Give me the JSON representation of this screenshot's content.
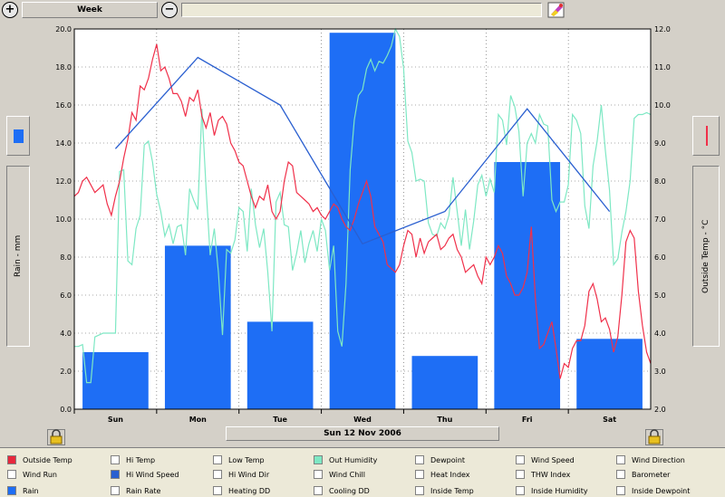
{
  "toolbar": {
    "zoom_in_label": "+",
    "zoom_out_label": "−",
    "period": "Week",
    "search_value": ""
  },
  "date_label": "Sun 12 Nov 2006",
  "colors": {
    "rain": "#1e6ef5",
    "outside_temp": "#f0304a",
    "humidity": "#7ee8c4",
    "wind": "#2a5fd0",
    "plot_bg": "#ffffff"
  },
  "chart_data": {
    "type": "bar",
    "grid": true,
    "categories": [
      "Sun",
      "Mon",
      "Tue",
      "Wed",
      "Thu",
      "Fri",
      "Sat"
    ],
    "left_axis": {
      "label": "Rain - mm",
      "range": [
        0,
        20
      ],
      "ticks": [
        "0.0",
        "2.0",
        "4.0",
        "6.0",
        "8.0",
        "10.0",
        "12.0",
        "14.0",
        "16.0",
        "18.0",
        "20.0"
      ]
    },
    "right_axis": {
      "label": "Outside Temp - °C",
      "range": [
        2,
        12
      ],
      "ticks": [
        "2.0",
        "3.0",
        "4.0",
        "5.0",
        "6.0",
        "7.0",
        "8.0",
        "9.0",
        "10.0",
        "11.0",
        "12.0"
      ]
    },
    "series": [
      {
        "name": "Rain",
        "type": "bar",
        "axis": "left",
        "values": [
          3.0,
          8.6,
          4.6,
          19.8,
          2.8,
          13.0,
          3.7
        ]
      },
      {
        "name": "Hi Wind Speed",
        "type": "line",
        "axis": "left",
        "x": [
          0.5,
          1.5,
          2.5,
          3.5,
          4.5,
          5.5,
          6.5
        ],
        "values": [
          13.7,
          18.5,
          16.0,
          8.7,
          10.4,
          15.8,
          10.4
        ]
      },
      {
        "name": "Outside Temp",
        "type": "line",
        "axis": "right",
        "x": [
          0.0,
          0.05,
          0.1,
          0.15,
          0.2,
          0.25,
          0.3,
          0.35,
          0.4,
          0.45,
          0.5,
          0.55,
          0.6,
          0.65,
          0.7,
          0.75,
          0.8,
          0.85,
          0.9,
          0.95,
          1.0,
          1.05,
          1.1,
          1.15,
          1.2,
          1.25,
          1.3,
          1.35,
          1.4,
          1.45,
          1.5,
          1.55,
          1.6,
          1.65,
          1.7,
          1.75,
          1.8,
          1.85,
          1.9,
          1.95,
          2.0,
          2.05,
          2.1,
          2.15,
          2.2,
          2.25,
          2.3,
          2.35,
          2.4,
          2.45,
          2.5,
          2.55,
          2.6,
          2.65,
          2.7,
          2.75,
          2.8,
          2.85,
          2.9,
          2.95,
          3.0,
          3.05,
          3.1,
          3.15,
          3.2,
          3.25,
          3.3,
          3.35,
          3.4,
          3.45,
          3.5,
          3.55,
          3.6,
          3.65,
          3.7,
          3.75,
          3.8,
          3.85,
          3.9,
          3.95,
          4.0,
          4.05,
          4.1,
          4.15,
          4.2,
          4.25,
          4.3,
          4.35,
          4.4,
          4.45,
          4.5,
          4.55,
          4.6,
          4.65,
          4.7,
          4.75,
          4.8,
          4.85,
          4.9,
          4.95,
          5.0,
          5.05,
          5.1,
          5.15,
          5.2,
          5.25,
          5.3,
          5.35,
          5.4,
          5.45,
          5.5,
          5.55,
          5.6,
          5.65,
          5.7,
          5.75,
          5.8,
          5.85,
          5.9,
          5.95,
          6.0,
          6.05,
          6.1,
          6.15,
          6.2,
          6.25,
          6.3,
          6.35,
          6.4,
          6.45,
          6.5,
          6.55,
          6.6,
          6.65,
          6.7,
          6.75,
          6.8,
          6.85,
          6.9,
          6.95,
          7.0
        ],
        "values": [
          7.6,
          7.7,
          8.0,
          8.1,
          7.9,
          7.7,
          7.8,
          7.9,
          7.4,
          7.1,
          7.6,
          8.0,
          8.6,
          9.1,
          9.8,
          9.6,
          10.5,
          10.4,
          10.7,
          11.2,
          11.6,
          10.9,
          11.0,
          10.7,
          10.3,
          10.3,
          10.1,
          9.7,
          10.2,
          10.1,
          10.4,
          9.7,
          9.4,
          9.8,
          9.2,
          9.6,
          9.7,
          9.5,
          9.0,
          8.8,
          8.5,
          8.4,
          8.0,
          7.6,
          7.3,
          7.6,
          7.5,
          7.9,
          7.2,
          7.0,
          7.2,
          8.0,
          8.5,
          8.4,
          7.7,
          7.6,
          7.5,
          7.4,
          7.2,
          7.3,
          7.1,
          7.0,
          7.2,
          7.4,
          7.3,
          7.0,
          6.8,
          6.7,
          7.0,
          7.4,
          7.7,
          8.0,
          7.6,
          6.8,
          6.6,
          6.4,
          5.8,
          5.7,
          5.6,
          5.8,
          6.3,
          6.7,
          6.6,
          6.0,
          6.5,
          6.1,
          6.4,
          6.5,
          6.6,
          6.2,
          6.3,
          6.5,
          6.6,
          6.2,
          6.0,
          5.6,
          5.7,
          5.8,
          5.5,
          5.3,
          6.0,
          5.8,
          6.0,
          6.3,
          6.1,
          5.5,
          5.3,
          5.0,
          5.0,
          5.2,
          5.6,
          6.8,
          4.9,
          3.6,
          3.7,
          4.0,
          4.3,
          3.6,
          2.8,
          3.2,
          3.1,
          3.6,
          3.8,
          3.8,
          4.2,
          5.1,
          5.3,
          4.9,
          4.3,
          4.4,
          4.1,
          3.5,
          3.9,
          5.0,
          6.4,
          6.7,
          6.5,
          5.1,
          4.2,
          3.5,
          3.2
        ]
      },
      {
        "name": "Out Humidity",
        "type": "line",
        "axis": "left",
        "x": [
          0.0,
          0.05,
          0.1,
          0.15,
          0.2,
          0.25,
          0.3,
          0.35,
          0.4,
          0.45,
          0.5,
          0.55,
          0.6,
          0.65,
          0.7,
          0.75,
          0.8,
          0.85,
          0.9,
          0.95,
          1.0,
          1.05,
          1.1,
          1.15,
          1.2,
          1.25,
          1.3,
          1.35,
          1.4,
          1.45,
          1.5,
          1.55,
          1.6,
          1.65,
          1.7,
          1.75,
          1.8,
          1.85,
          1.9,
          1.95,
          2.0,
          2.05,
          2.1,
          2.15,
          2.2,
          2.25,
          2.3,
          2.35,
          2.4,
          2.45,
          2.5,
          2.55,
          2.6,
          2.65,
          2.7,
          2.75,
          2.8,
          2.85,
          2.9,
          2.95,
          3.0,
          3.05,
          3.1,
          3.15,
          3.2,
          3.25,
          3.3,
          3.35,
          3.4,
          3.45,
          3.5,
          3.55,
          3.6,
          3.65,
          3.7,
          3.75,
          3.8,
          3.85,
          3.9,
          3.95,
          4.0,
          4.05,
          4.1,
          4.15,
          4.2,
          4.25,
          4.3,
          4.35,
          4.4,
          4.45,
          4.5,
          4.55,
          4.6,
          4.65,
          4.7,
          4.75,
          4.8,
          4.85,
          4.9,
          4.95,
          5.0,
          5.05,
          5.1,
          5.15,
          5.2,
          5.25,
          5.3,
          5.35,
          5.4,
          5.45,
          5.5,
          5.55,
          5.6,
          5.65,
          5.7,
          5.75,
          5.8,
          5.85,
          5.9,
          5.95,
          6.0,
          6.05,
          6.1,
          6.15,
          6.2,
          6.25,
          6.3,
          6.35,
          6.4,
          6.45,
          6.5,
          6.55,
          6.6,
          6.65,
          6.7,
          6.75,
          6.8,
          6.85,
          6.9,
          6.95,
          7.0
        ],
        "values": [
          3.3,
          3.3,
          3.4,
          1.4,
          1.4,
          3.8,
          3.9,
          4.0,
          4.0,
          4.0,
          4.0,
          12.5,
          12.6,
          7.8,
          7.6,
          9.5,
          10.2,
          13.9,
          14.1,
          13.0,
          11.3,
          10.4,
          9.1,
          9.7,
          8.7,
          9.6,
          9.7,
          8.1,
          11.6,
          11.0,
          10.5,
          15.8,
          11.6,
          8.1,
          9.5,
          7.2,
          3.9,
          8.4,
          8.2,
          8.9,
          10.6,
          10.4,
          8.3,
          11.6,
          9.7,
          8.5,
          9.5,
          7.2,
          4.1,
          10.9,
          11.4,
          9.7,
          9.6,
          7.3,
          8.2,
          9.4,
          7.7,
          8.7,
          9.4,
          8.3,
          10.0,
          9.4,
          7.3,
          8.6,
          4.1,
          3.3,
          6.6,
          12.6,
          15.2,
          16.5,
          16.8,
          17.9,
          18.4,
          17.8,
          18.3,
          18.2,
          18.6,
          19.1,
          20.0,
          19.6,
          17.9,
          14.1,
          13.5,
          12.0,
          12.1,
          12.0,
          9.8,
          9.2,
          9.1,
          9.8,
          9.5,
          10.2,
          12.2,
          10.4,
          8.6,
          10.5,
          8.4,
          9.9,
          11.8,
          12.3,
          11.2,
          12.1,
          11.4,
          15.5,
          15.2,
          13.9,
          16.5,
          15.9,
          14.6,
          11.2,
          14.0,
          14.5,
          14.0,
          15.5,
          15.0,
          14.9,
          11.0,
          10.4,
          10.9,
          10.9,
          11.8,
          15.5,
          15.2,
          14.5,
          10.7,
          9.5,
          12.8,
          14.1,
          16.0,
          13.6,
          11.5,
          7.6,
          7.9,
          9.3,
          10.4,
          12.0,
          15.3,
          15.5,
          15.5,
          15.6,
          15.5
        ]
      }
    ]
  },
  "legend": {
    "items": [
      {
        "label": "Outside Temp",
        "color": "#e8283c"
      },
      {
        "label": "Hi Temp",
        "color": ""
      },
      {
        "label": "Low Temp",
        "color": ""
      },
      {
        "label": "Out Humidity",
        "color": "#7ee8c4"
      },
      {
        "label": "Dewpoint",
        "color": ""
      },
      {
        "label": "Wind Speed",
        "color": ""
      },
      {
        "label": "Wind Direction",
        "color": ""
      },
      {
        "label": "Wind Run",
        "color": ""
      },
      {
        "label": "Hi Wind Speed",
        "color": "#2a5fd0"
      },
      {
        "label": "Hi Wind Dir",
        "color": ""
      },
      {
        "label": "Wind Chill",
        "color": ""
      },
      {
        "label": "Heat Index",
        "color": ""
      },
      {
        "label": "THW Index",
        "color": ""
      },
      {
        "label": "Barometer",
        "color": ""
      },
      {
        "label": "Rain",
        "color": "#1e6ef5"
      },
      {
        "label": "Rain Rate",
        "color": ""
      },
      {
        "label": "Heating DD",
        "color": ""
      },
      {
        "label": "Cooling DD",
        "color": ""
      },
      {
        "label": "Inside Temp",
        "color": ""
      },
      {
        "label": "Inside Humidity",
        "color": ""
      },
      {
        "label": "Inside Dewpoint",
        "color": ""
      }
    ]
  }
}
